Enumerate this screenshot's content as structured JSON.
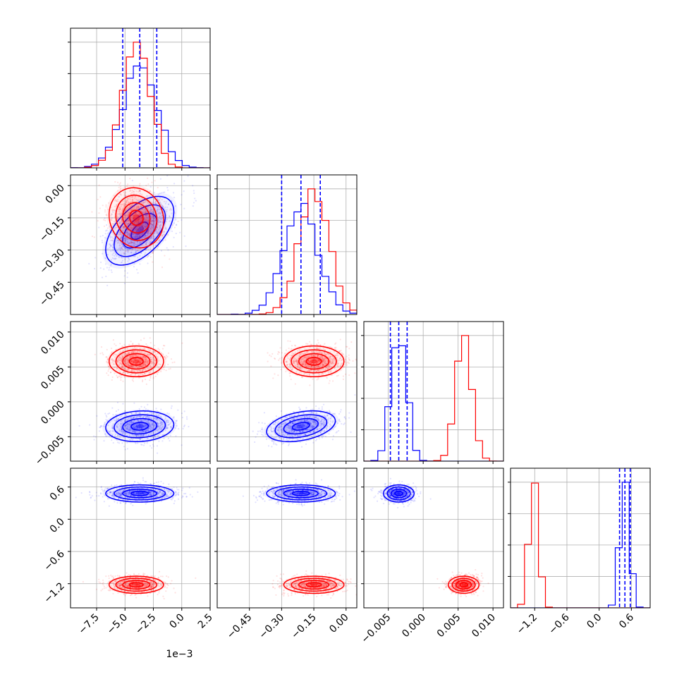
{
  "chart_data": {
    "type": "corner",
    "title": "",
    "legend": "none",
    "grid": true,
    "n_params": 4,
    "series": [
      {
        "color": "#0000ff",
        "quantile_color": "#0000ff",
        "means": [
          -0.0037,
          -0.21,
          -0.0035,
          0.48
        ],
        "stds": [
          0.0015,
          0.08,
          0.0011,
          0.08
        ],
        "quantiles": [
          [
            -0.0052,
            -0.0037,
            -0.0022
          ],
          [
            -0.3,
            -0.21,
            -0.12
          ],
          [
            -0.0047,
            -0.0035,
            -0.0023
          ],
          [
            0.38,
            0.48,
            0.58
          ]
        ]
      },
      {
        "color": "#ff0000",
        "means": [
          -0.004,
          -0.15,
          0.0058,
          -1.22
        ],
        "stds": [
          0.0012,
          0.07,
          0.0011,
          0.08
        ],
        "quantiles": []
      }
    ],
    "correlations": [
      {
        "pair": [
          0,
          1
        ],
        "series": 0,
        "rho": 0.55
      },
      {
        "pair": [
          0,
          1
        ],
        "series": 1,
        "rho": -0.1
      },
      {
        "pair": [
          0,
          2
        ],
        "series": 0,
        "rho": 0.1
      },
      {
        "pair": [
          0,
          2
        ],
        "series": 1,
        "rho": 0.0
      },
      {
        "pair": [
          0,
          3
        ],
        "series": 0,
        "rho": 0.0
      },
      {
        "pair": [
          0,
          3
        ],
        "series": 1,
        "rho": 0.0
      },
      {
        "pair": [
          1,
          2
        ],
        "series": 0,
        "rho": 0.35
      },
      {
        "pair": [
          1,
          2
        ],
        "series": 1,
        "rho": 0.0
      },
      {
        "pair": [
          1,
          3
        ],
        "series": 0,
        "rho": 0.0
      },
      {
        "pair": [
          1,
          3
        ],
        "series": 1,
        "rho": 0.0
      },
      {
        "pair": [
          2,
          3
        ],
        "series": 0,
        "rho": 0.0
      },
      {
        "pair": [
          2,
          3
        ],
        "series": 1,
        "rho": 0.0
      }
    ],
    "axes": [
      {
        "range": [
          -0.0098,
          0.0025
        ],
        "ticks": [
          -0.0075,
          -0.005,
          -0.0025,
          0.0,
          0.0025
        ],
        "tick_labels": [
          "−7.5",
          "−5.0",
          "−2.5",
          "0.0",
          "2.5"
        ],
        "offset_label": "1e−3"
      },
      {
        "range": [
          -0.6,
          0.05
        ],
        "ticks": [
          -0.45,
          -0.3,
          -0.15,
          0.0
        ],
        "tick_labels": [
          "−0.45",
          "−0.30",
          "−0.15",
          "0.00"
        ]
      },
      {
        "range": [
          -0.0085,
          0.0115
        ],
        "ticks": [
          -0.005,
          0.0,
          0.005,
          0.01
        ],
        "tick_labels": [
          "−0.005",
          "0.000",
          "0.005",
          "0.010"
        ]
      },
      {
        "range": [
          -1.65,
          0.95
        ],
        "ticks": [
          -1.2,
          -0.6,
          0.0,
          0.6
        ],
        "tick_labels": [
          "−1.2",
          "−0.6",
          "0.0",
          "0.6"
        ]
      }
    ]
  }
}
